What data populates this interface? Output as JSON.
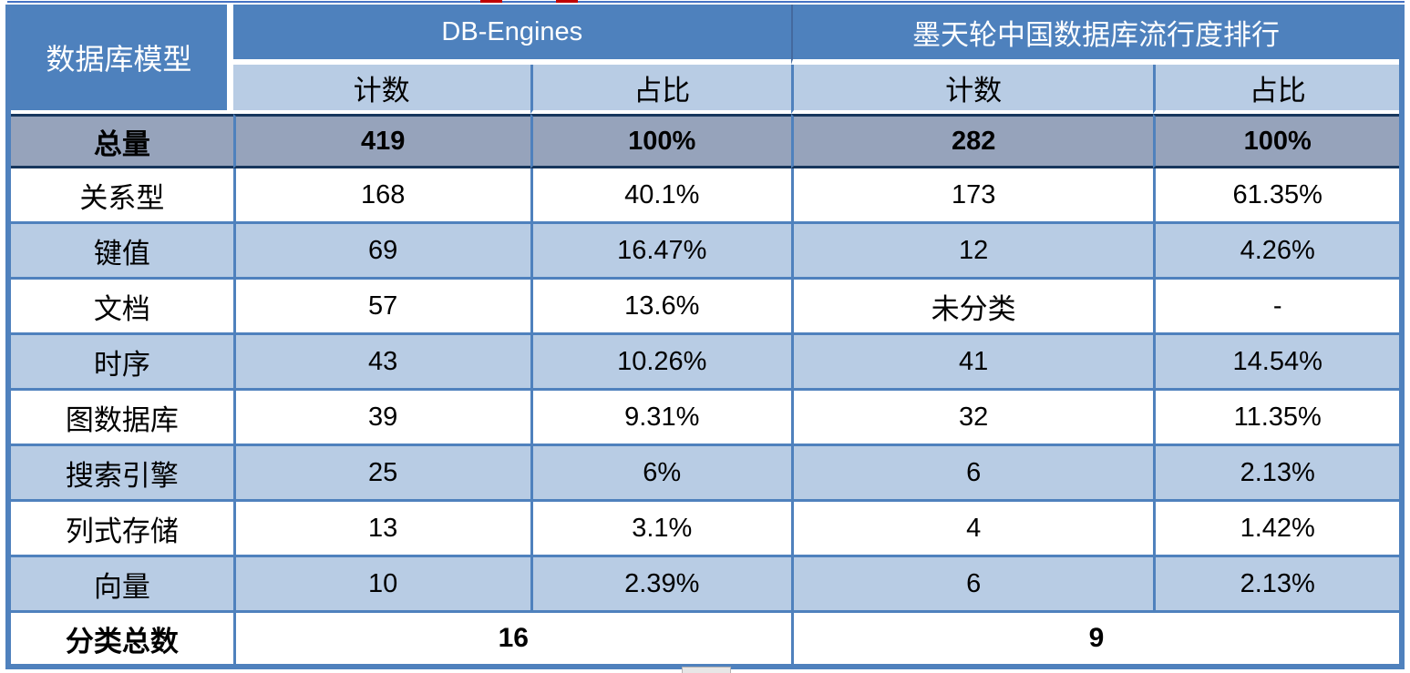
{
  "colors": {
    "header_blue": "#4e81bd",
    "band_light_blue": "#b8cce4",
    "total_row_gray_blue": "#96a3bb",
    "total_row_border_navy": "#17365d",
    "grid_blue": "#4f81bd",
    "artifact_red": "#c00000"
  },
  "chart_data": {
    "type": "table",
    "corner_header": "数据库模型",
    "column_groups": [
      {
        "label": "DB-Engines",
        "subcolumns": [
          "计数",
          "占比"
        ]
      },
      {
        "label": "墨天轮中国数据库流行度排行",
        "subcolumns": [
          "计数",
          "占比"
        ]
      }
    ],
    "rows": [
      {
        "label": "总量",
        "values": [
          "419",
          "100%",
          "282",
          "100%"
        ]
      },
      {
        "label": "关系型",
        "values": [
          "168",
          "40.1%",
          "173",
          "61.35%"
        ]
      },
      {
        "label": "键值",
        "values": [
          "69",
          "16.47%",
          "12",
          "4.26%"
        ]
      },
      {
        "label": "文档",
        "values": [
          "57",
          "13.6%",
          "未分类",
          "-"
        ]
      },
      {
        "label": "时序",
        "values": [
          "43",
          "10.26%",
          "41",
          "14.54%"
        ]
      },
      {
        "label": "图数据库",
        "values": [
          "39",
          "9.31%",
          "32",
          "11.35%"
        ]
      },
      {
        "label": "搜索引擎",
        "values": [
          "25",
          "6%",
          "6",
          "2.13%"
        ]
      },
      {
        "label": "列式存储",
        "values": [
          "13",
          "3.1%",
          "4",
          "1.42%"
        ]
      },
      {
        "label": "向量",
        "values": [
          "10",
          "2.39%",
          "6",
          "2.13%"
        ]
      }
    ],
    "footer": {
      "label": "分类总数",
      "values": [
        "16",
        "9"
      ]
    }
  }
}
